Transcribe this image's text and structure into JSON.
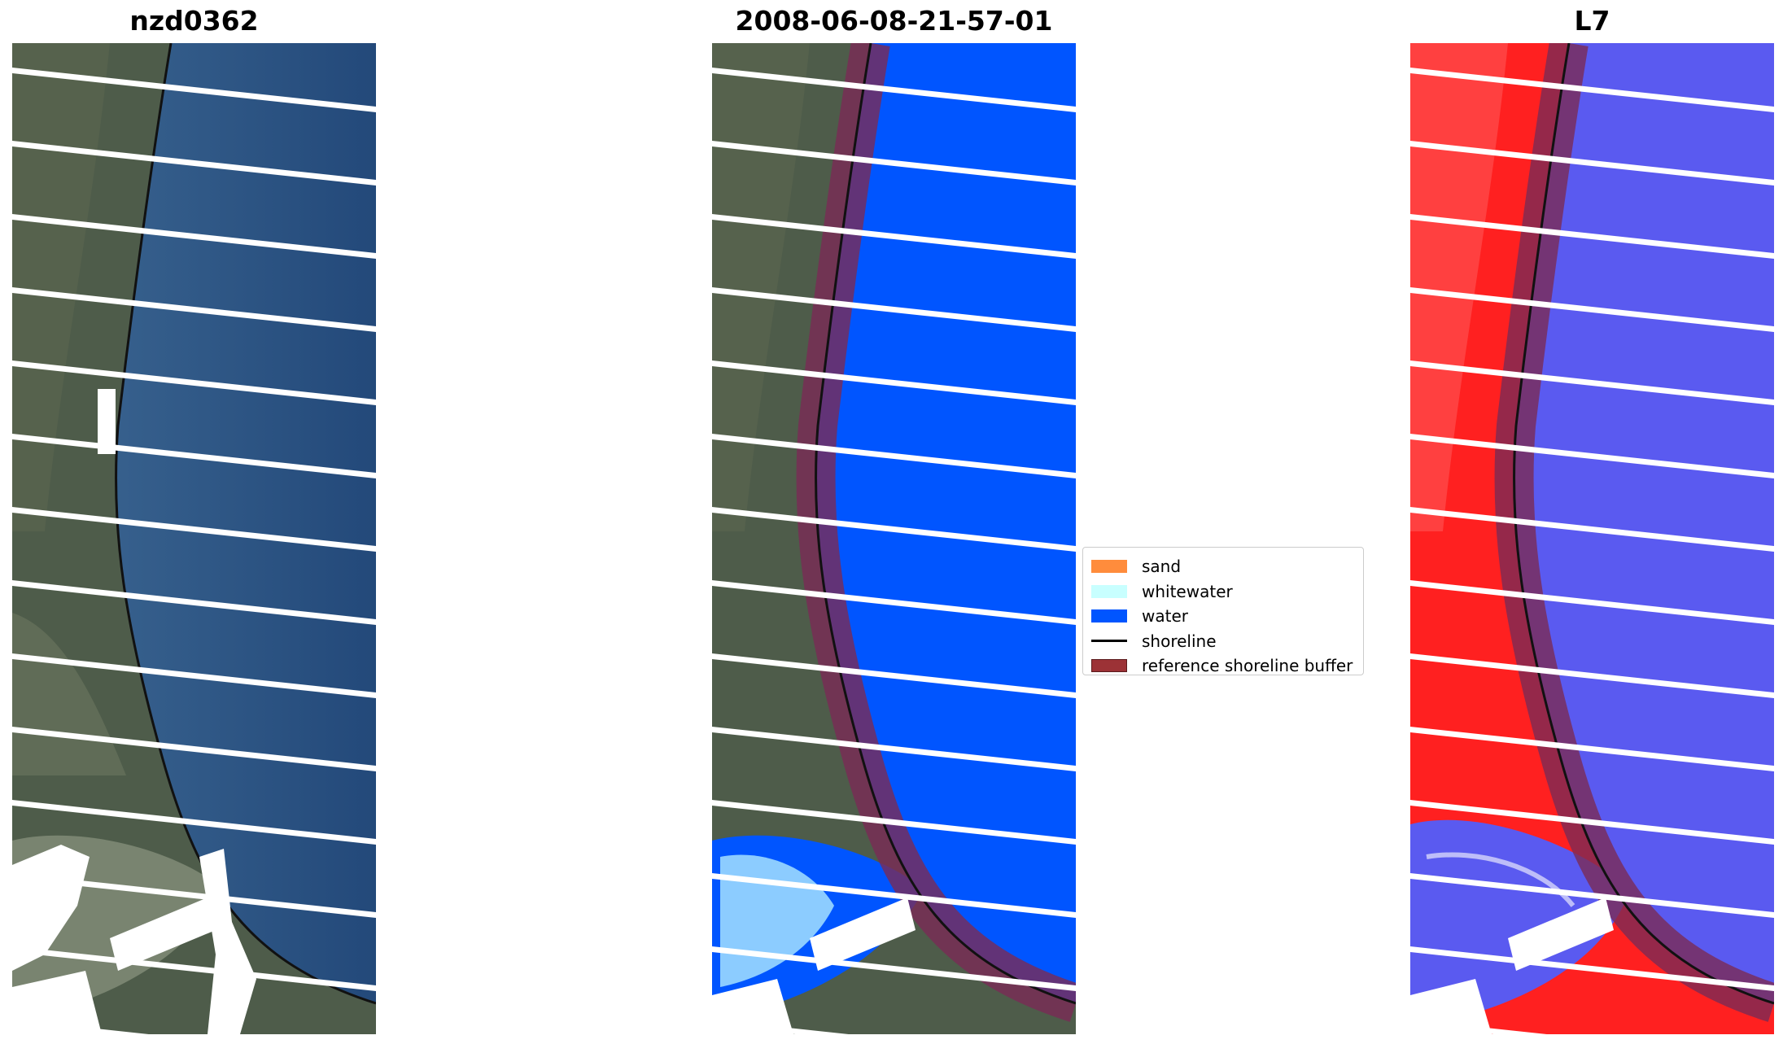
{
  "panels": [
    {
      "title": "nzd0362"
    },
    {
      "title": "2008-06-08-21-57-01"
    },
    {
      "title": "L7"
    }
  ],
  "legend": {
    "items": [
      {
        "label": "sand",
        "type": "patch",
        "color": "#ff8c3c"
      },
      {
        "label": "whitewater",
        "type": "patch",
        "color": "#c8ffff"
      },
      {
        "label": "water",
        "type": "patch",
        "color": "#0055ff"
      },
      {
        "label": "shoreline",
        "type": "line",
        "color": "#000000"
      },
      {
        "label": "reference shoreline buffer",
        "type": "patch",
        "color": "#9c3236"
      }
    ]
  },
  "colors": {
    "water_rgb": "#2b4f7c",
    "land_rgb": "#4e5c4a",
    "classified_water": "#0055ff",
    "buffer": "#7b2a55",
    "mndwi_land": "#ff2020",
    "mndwi_water": "#5a5af0",
    "gap": "#ffffff"
  }
}
